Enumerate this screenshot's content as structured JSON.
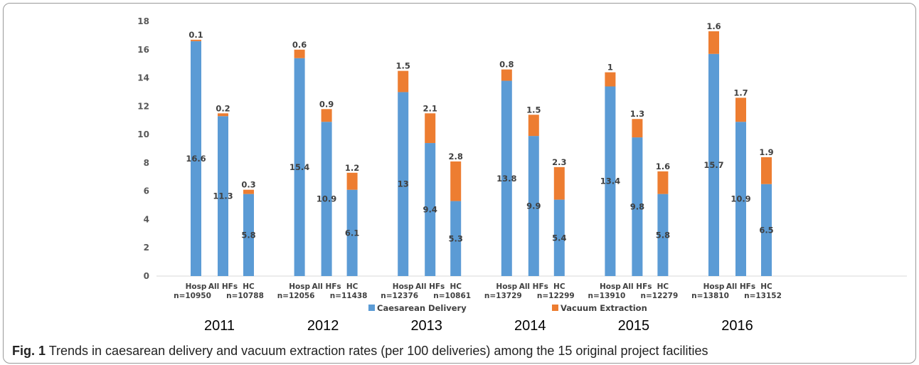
{
  "colors": {
    "caesarean": "#5b9bd5",
    "vacuum": "#ed7d31",
    "axis": "#d9d9d9"
  },
  "chart_data": {
    "type": "bar",
    "stacked": true,
    "ylim": [
      0,
      18
    ],
    "yticks": [
      "0",
      "2",
      "4",
      "6",
      "8",
      "10",
      "12",
      "14",
      "16",
      "18"
    ],
    "groups": [
      {
        "year": "2011",
        "bars": [
          {
            "label": "Hosp",
            "n": "n=10950",
            "caesarean": 16.6,
            "vacuum": 0.1,
            "c_label": "16.6",
            "v_label": "0.1"
          },
          {
            "label": "All HFs",
            "n": "",
            "caesarean": 11.3,
            "vacuum": 0.2,
            "c_label": "11.3",
            "v_label": "0.2"
          },
          {
            "label": "HC",
            "n": "n=10788",
            "caesarean": 5.8,
            "vacuum": 0.3,
            "c_label": "5.8",
            "v_label": "0.3"
          }
        ]
      },
      {
        "year": "2012",
        "bars": [
          {
            "label": "Hosp",
            "n": "n=12056",
            "caesarean": 15.4,
            "vacuum": 0.6,
            "c_label": "15.4",
            "v_label": "0.6"
          },
          {
            "label": "All HFs",
            "n": "",
            "caesarean": 10.9,
            "vacuum": 0.9,
            "c_label": "10.9",
            "v_label": "0.9"
          },
          {
            "label": "HC",
            "n": "n=11438",
            "caesarean": 6.1,
            "vacuum": 1.2,
            "c_label": "6.1",
            "v_label": "1.2"
          }
        ]
      },
      {
        "year": "2013",
        "bars": [
          {
            "label": "Hosp",
            "n": "n=12376",
            "caesarean": 13,
            "vacuum": 1.5,
            "c_label": "13",
            "v_label": "1.5"
          },
          {
            "label": "All HFs",
            "n": "",
            "caesarean": 9.4,
            "vacuum": 2.1,
            "c_label": "9.4",
            "v_label": "2.1"
          },
          {
            "label": "HC",
            "n": "n=10861",
            "caesarean": 5.3,
            "vacuum": 2.8,
            "c_label": "5.3",
            "v_label": "2.8"
          }
        ]
      },
      {
        "year": "2014",
        "bars": [
          {
            "label": "Hosp",
            "n": "n=13729",
            "caesarean": 13.8,
            "vacuum": 0.8,
            "c_label": "13.8",
            "v_label": "0.8"
          },
          {
            "label": "All HFs",
            "n": "",
            "caesarean": 9.9,
            "vacuum": 1.5,
            "c_label": "9.9",
            "v_label": "1.5"
          },
          {
            "label": "HC",
            "n": "n=12299",
            "caesarean": 5.4,
            "vacuum": 2.3,
            "c_label": "5.4",
            "v_label": "2.3"
          }
        ]
      },
      {
        "year": "2015",
        "bars": [
          {
            "label": "Hosp",
            "n": "n=13910",
            "caesarean": 13.4,
            "vacuum": 1,
            "c_label": "13.4",
            "v_label": "1"
          },
          {
            "label": "All HFs",
            "n": "",
            "caesarean": 9.8,
            "vacuum": 1.3,
            "c_label": "9.8",
            "v_label": "1.3"
          },
          {
            "label": "HC",
            "n": "n=12279",
            "caesarean": 5.8,
            "vacuum": 1.6,
            "c_label": "5.8",
            "v_label": "1.6"
          }
        ]
      },
      {
        "year": "2016",
        "bars": [
          {
            "label": "Hosp",
            "n": "n=13810",
            "caesarean": 15.7,
            "vacuum": 1.6,
            "c_label": "15.7",
            "v_label": "1.6"
          },
          {
            "label": "All HFs",
            "n": "",
            "caesarean": 10.9,
            "vacuum": 1.7,
            "c_label": "10.9",
            "v_label": "1.7"
          },
          {
            "label": "HC",
            "n": "n=13152",
            "caesarean": 6.5,
            "vacuum": 1.9,
            "c_label": "6.5",
            "v_label": "1.9"
          }
        ]
      }
    ],
    "legend": [
      {
        "key": "caesarean",
        "label": "Caesarean Delivery"
      },
      {
        "key": "vacuum",
        "label": "Vacuum Extraction"
      }
    ],
    "legend_position": "bottom"
  },
  "caption": {
    "label": "Fig. 1",
    "text": " Trends in caesarean delivery and vacuum extraction rates (per 100 deliveries) among the 15 original project facilities"
  }
}
